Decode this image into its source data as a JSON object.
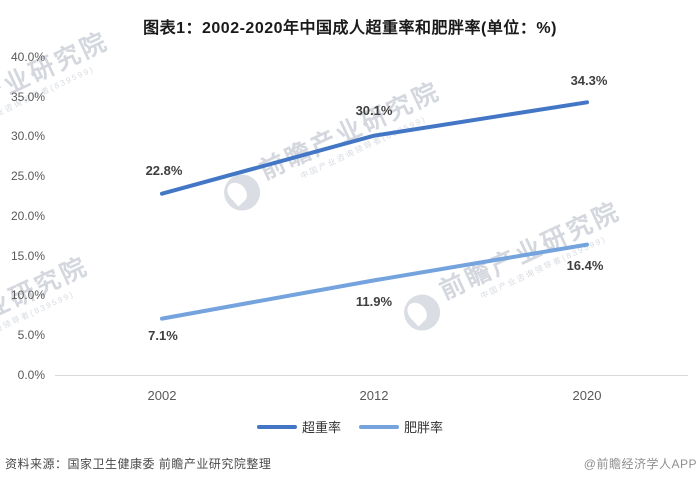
{
  "title": "图表1：2002-2020年中国成人超重率和肥胖率(单位：%)",
  "chart_data": {
    "type": "line",
    "categories": [
      "2002",
      "2012",
      "2020"
    ],
    "series": [
      {
        "name": "超重率",
        "values": [
          22.8,
          30.1,
          34.3
        ],
        "labels": [
          "22.8%",
          "30.1%",
          "34.3%"
        ],
        "color": "#4377c6"
      },
      {
        "name": "肥胖率",
        "values": [
          7.1,
          11.9,
          16.4
        ],
        "labels": [
          "7.1%",
          "11.9%",
          "16.4%"
        ],
        "color": "#74a3dd"
      }
    ],
    "title": "图表1：2002-2020年中国成人超重率和肥胖率(单位：%)",
    "xlabel": "",
    "ylabel": "",
    "ylim": [
      0,
      40
    ],
    "y_ticks": [
      "40.0%",
      "35.0%",
      "30.0%",
      "25.0%",
      "20.0%",
      "15.0%",
      "10.0%",
      "5.0%",
      "0.0%"
    ],
    "grid": false,
    "legend_position": "bottom"
  },
  "footer": {
    "source": "资料来源：国家卫生健康委 前瞻产业研究院整理",
    "credit": "@前瞻经济学人APP"
  },
  "watermark": {
    "text": "前瞻产业研究院",
    "subtext": "中国产业咨询领导者(839599)"
  }
}
